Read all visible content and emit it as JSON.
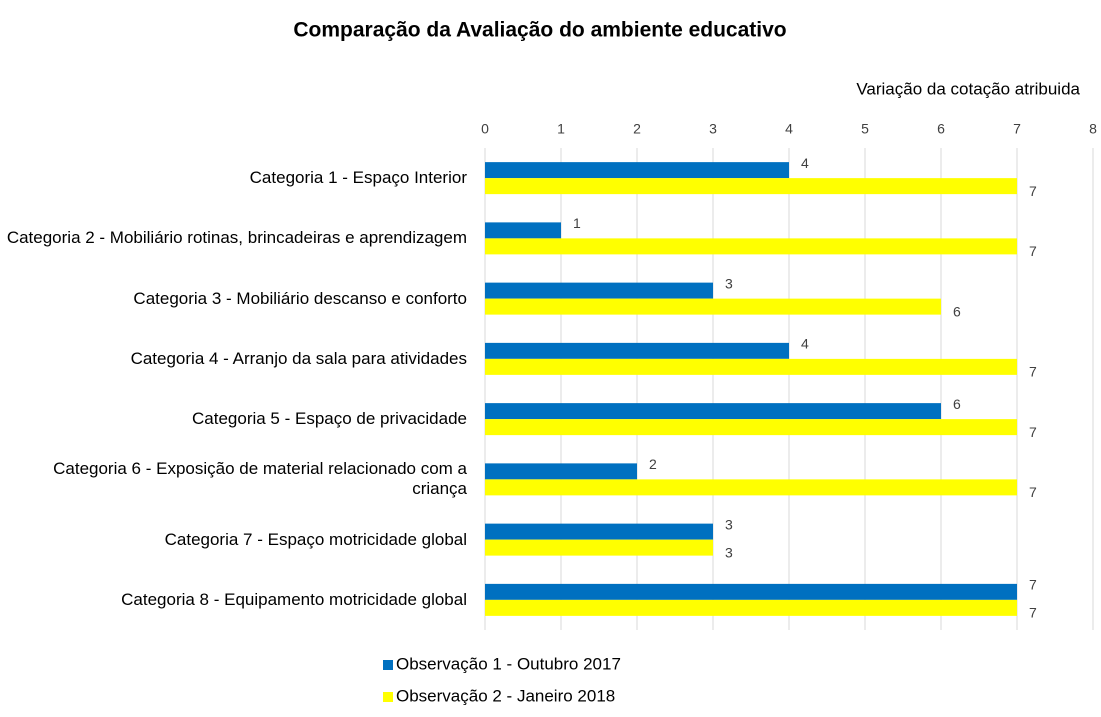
{
  "chart_data": {
    "type": "barh",
    "title": "Comparação da Avaliação do ambiente educativo",
    "x_label": "Variação da cotação atribuida",
    "categories": [
      "Categoria 1 - Espaço Interior",
      "Categoria 2 - Mobiliário rotinas, brincadeiras e aprendizagem",
      "Categoria 3 - Mobiliário descanso e conforto",
      "Categoria 4 - Arranjo da sala para atividades",
      "Categoria 5 - Espaço de privacidade",
      "Categoria 6 - Exposição de material relacionado com a criança",
      "Categoria 7 - Espaço motricidade global",
      "Categoria 8 - Equipamento motricidade global"
    ],
    "series": [
      {
        "name": "Observação 1 - Outubro 2017",
        "color": "#0070c0",
        "values": [
          4,
          1,
          3,
          4,
          6,
          2,
          3,
          7
        ]
      },
      {
        "name": "Observação 2 - Janeiro 2018",
        "color": "#ffff00",
        "values": [
          7,
          7,
          6,
          7,
          7,
          7,
          3,
          7
        ]
      }
    ],
    "xlim": [
      0,
      8
    ],
    "xticks": [
      0,
      1,
      2,
      3,
      4,
      5,
      6,
      7,
      8
    ],
    "grid": true,
    "legend": "bottom"
  }
}
